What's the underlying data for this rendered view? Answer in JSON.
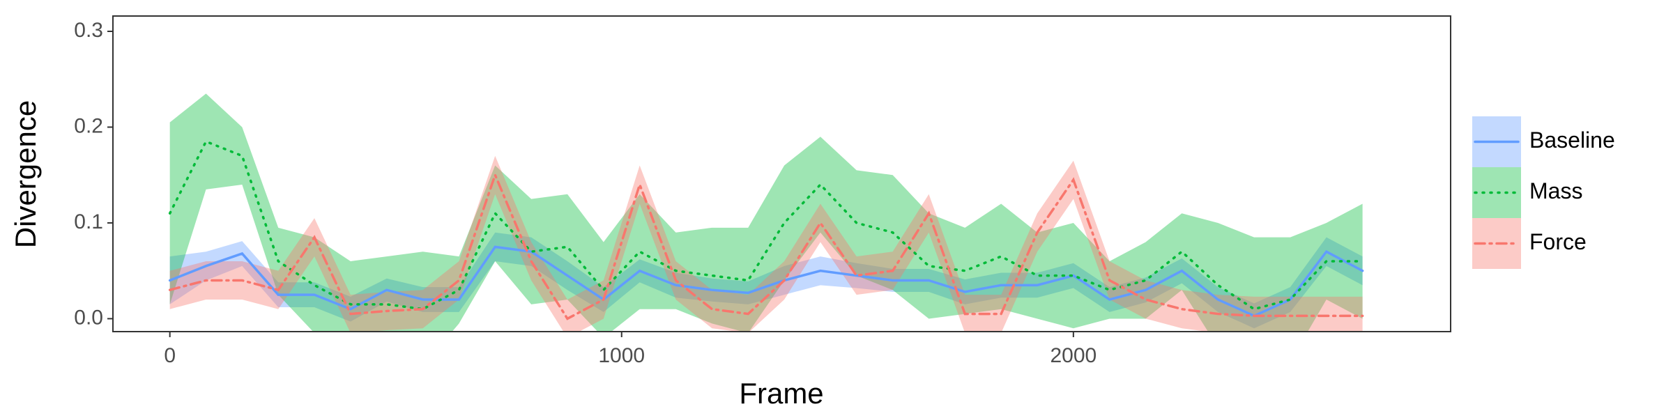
{
  "chart_data": {
    "type": "line",
    "xlabel": "Frame",
    "ylabel": "Divergence",
    "xlim": [
      -126,
      2835
    ],
    "ylim": [
      -0.0135,
      0.316
    ],
    "xticks": [
      0,
      1000,
      2000
    ],
    "yticks": [
      {
        "value": 0,
        "label": "0.0"
      },
      0.1,
      0.2,
      0.3
    ],
    "legend": "right",
    "x": [
      0,
      80,
      160,
      240,
      320,
      400,
      480,
      560,
      640,
      720,
      800,
      880,
      960,
      1040,
      1120,
      1200,
      1280,
      1360,
      1440,
      1520,
      1600,
      1680,
      1760,
      1840,
      1920,
      2000,
      2080,
      2160,
      2240,
      2320,
      2400,
      2480,
      2560,
      2640
    ],
    "series": [
      {
        "name": "Baseline",
        "color": "#619cff",
        "linetype": "solid",
        "values": [
          0.04,
          0.055,
          0.068,
          0.025,
          0.025,
          0.01,
          0.03,
          0.02,
          0.02,
          0.075,
          0.07,
          0.045,
          0.02,
          0.05,
          0.035,
          0.03,
          0.027,
          0.04,
          0.05,
          0.045,
          0.04,
          0.04,
          0.028,
          0.035,
          0.035,
          0.045,
          0.02,
          0.03,
          0.05,
          0.02,
          0.003,
          0.02,
          0.07,
          0.05
        ],
        "lower": [
          0.015,
          0.04,
          0.055,
          0.012,
          0.012,
          -0.003,
          0.018,
          0.007,
          0.007,
          0.06,
          0.055,
          0.03,
          0.007,
          0.038,
          0.022,
          0.018,
          0.015,
          0.025,
          0.035,
          0.032,
          0.028,
          0.028,
          0.015,
          0.022,
          0.022,
          0.032,
          0.007,
          0.017,
          0.037,
          0.007,
          -0.01,
          0.007,
          0.055,
          0.035
        ],
        "upper": [
          0.065,
          0.07,
          0.081,
          0.038,
          0.038,
          0.023,
          0.042,
          0.033,
          0.033,
          0.09,
          0.085,
          0.06,
          0.033,
          0.062,
          0.048,
          0.042,
          0.039,
          0.055,
          0.065,
          0.058,
          0.052,
          0.052,
          0.041,
          0.048,
          0.048,
          0.058,
          0.033,
          0.043,
          0.063,
          0.033,
          0.016,
          0.033,
          0.085,
          0.065
        ]
      },
      {
        "name": "Mass",
        "color": "#00ba38",
        "linetype": "dotted",
        "values": [
          0.11,
          0.185,
          0.17,
          0.06,
          0.035,
          0.015,
          0.015,
          0.01,
          0.03,
          0.11,
          0.07,
          0.075,
          0.03,
          0.07,
          0.05,
          0.045,
          0.04,
          0.1,
          0.14,
          0.1,
          0.09,
          0.055,
          0.05,
          0.065,
          0.045,
          0.045,
          0.03,
          0.04,
          0.07,
          0.035,
          0.01,
          0.02,
          0.06,
          0.06
        ],
        "lower": [
          0.015,
          0.135,
          0.14,
          0.025,
          -0.015,
          -0.03,
          -0.035,
          -0.05,
          -0.005,
          0.06,
          0.015,
          0.02,
          -0.02,
          0.01,
          0.01,
          -0.005,
          -0.015,
          0.04,
          0.09,
          0.045,
          0.03,
          0,
          0.005,
          0.01,
          0,
          -0.01,
          0,
          0,
          0.03,
          -0.03,
          -0.065,
          -0.045,
          0.02,
          0
        ],
        "upper": [
          0.205,
          0.235,
          0.2,
          0.095,
          0.085,
          0.06,
          0.065,
          0.07,
          0.065,
          0.16,
          0.125,
          0.13,
          0.08,
          0.13,
          0.09,
          0.095,
          0.095,
          0.16,
          0.19,
          0.155,
          0.15,
          0.11,
          0.095,
          0.12,
          0.09,
          0.1,
          0.06,
          0.08,
          0.11,
          0.1,
          0.085,
          0.085,
          0.1,
          0.12
        ]
      },
      {
        "name": "Force",
        "color": "#f8766d",
        "linetype": "dashdot",
        "values": [
          0.03,
          0.04,
          0.04,
          0.03,
          0.085,
          0.005,
          0.008,
          0.01,
          0.04,
          0.15,
          0.06,
          0,
          0.02,
          0.14,
          0.04,
          0.01,
          0.005,
          0.04,
          0.1,
          0.045,
          0.05,
          0.11,
          0.005,
          0.005,
          0.09,
          0.145,
          0.04,
          0.02,
          0.01,
          0.005,
          0.003,
          0.003,
          0.003,
          0.003
        ],
        "lower": [
          0.01,
          0.02,
          0.02,
          0.01,
          0.065,
          -0.015,
          -0.012,
          -0.01,
          0.02,
          0.13,
          0.04,
          -0.02,
          0,
          0.12,
          0.02,
          -0.01,
          -0.015,
          0.02,
          0.08,
          0.025,
          0.03,
          0.09,
          -0.015,
          -0.015,
          0.07,
          0.125,
          0.02,
          0,
          -0.01,
          -0.015,
          -0.017,
          -0.017,
          -0.017,
          -0.017
        ],
        "upper": [
          0.05,
          0.06,
          0.06,
          0.05,
          0.105,
          0.025,
          0.028,
          0.03,
          0.06,
          0.17,
          0.08,
          0.02,
          0.04,
          0.16,
          0.06,
          0.03,
          0.025,
          0.06,
          0.12,
          0.065,
          0.07,
          0.13,
          0.025,
          0.025,
          0.11,
          0.165,
          0.06,
          0.04,
          0.03,
          0.025,
          0.023,
          0.023,
          0.023,
          0.023
        ]
      }
    ]
  }
}
